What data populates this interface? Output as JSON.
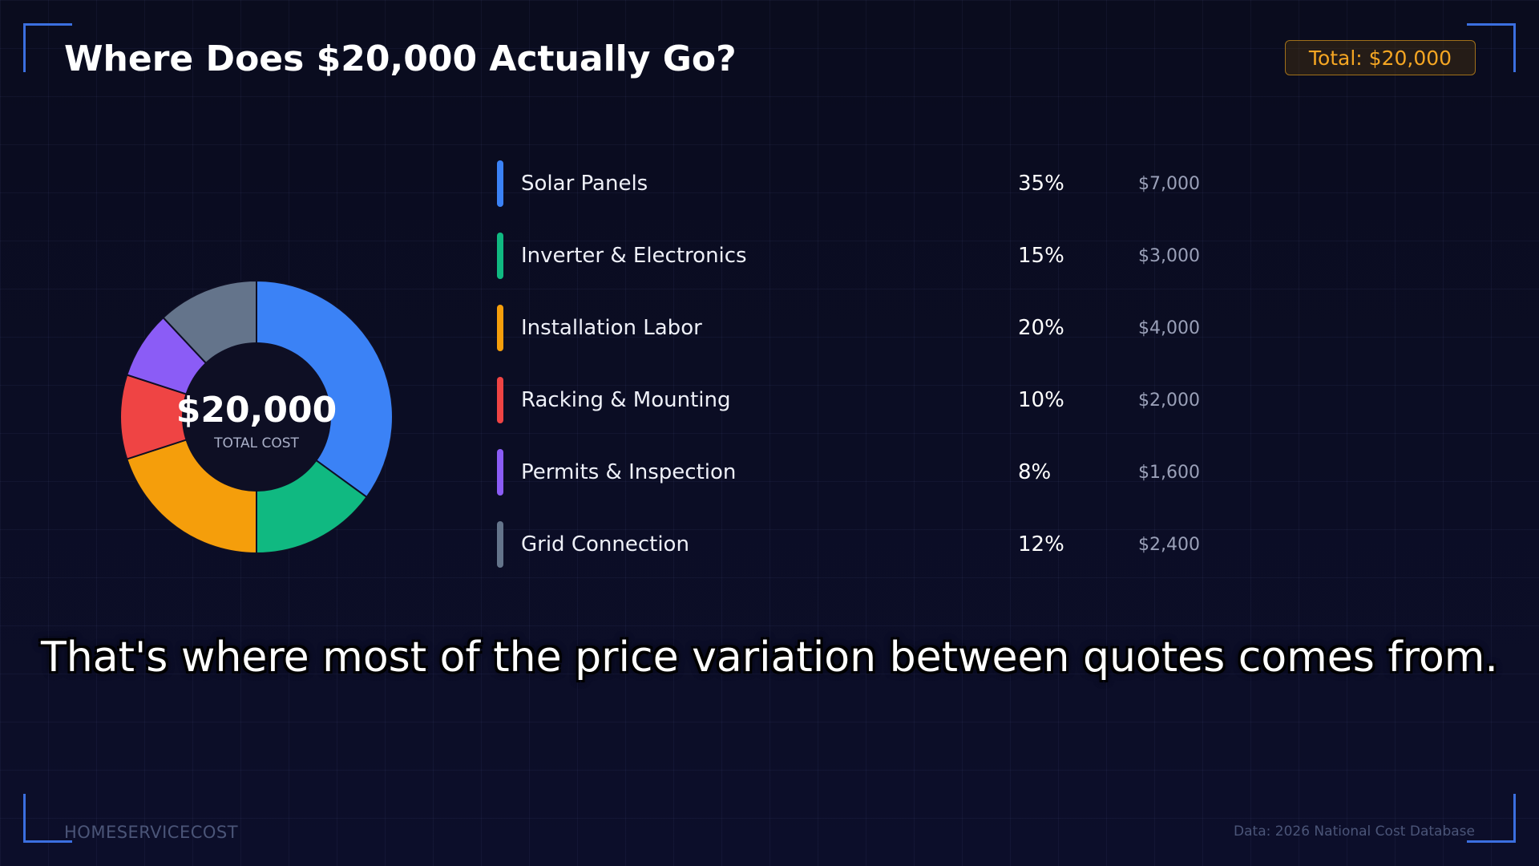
{
  "header": {
    "title": "Where Does $20,000 Actually Go?",
    "total_badge": "Total: $20,000"
  },
  "donut_center": {
    "value": "$20,000",
    "label": "TOTAL COST"
  },
  "chart_data": {
    "type": "pie",
    "title": "Where Does $20,000 Actually Go?",
    "categories": [
      "Solar Panels",
      "Inverter & Electronics",
      "Installation Labor",
      "Racking & Mounting",
      "Permits & Inspection",
      "Grid Connection"
    ],
    "values": [
      35,
      15,
      20,
      10,
      8,
      12
    ],
    "percent_labels": [
      "35%",
      "15%",
      "20%",
      "10%",
      "8%",
      "12%"
    ],
    "amount_labels": [
      "$7,000",
      "$3,000",
      "$4,000",
      "$2,000",
      "$1,600",
      "$2,400"
    ],
    "colors": [
      "#3b82f6",
      "#10b981",
      "#f59e0b",
      "#ef4444",
      "#8b5cf6",
      "#64748b"
    ],
    "donut": true,
    "legend": "right"
  },
  "caption": "That's where most of the price variation between quotes comes from.",
  "footer": {
    "brand": "HOMESERVICECOST",
    "source": "Data: 2026 National Cost Database"
  }
}
